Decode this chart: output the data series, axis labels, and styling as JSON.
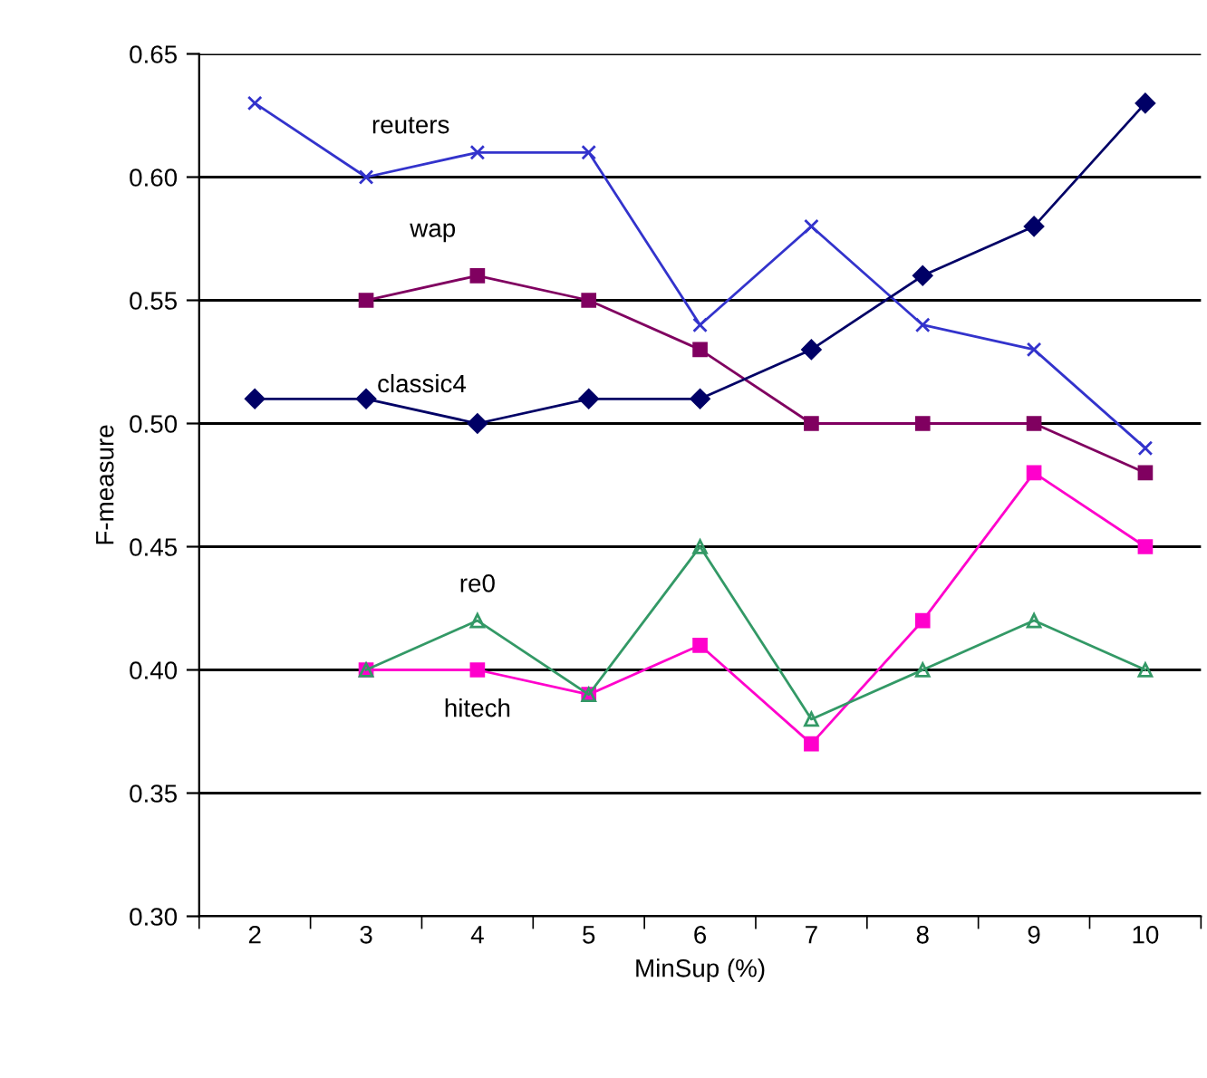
{
  "chart_data": {
    "type": "line",
    "xlabel": "MinSup (%)",
    "ylabel": "F-measure",
    "categories": [
      "2",
      "3",
      "4",
      "5",
      "6",
      "7",
      "8",
      "9",
      "10"
    ],
    "ylim": [
      0.3,
      0.65
    ],
    "yticks": [
      {
        "value": 0.3,
        "label": "0.30"
      },
      {
        "value": 0.35,
        "label": "0.35"
      },
      {
        "value": 0.4,
        "label": "0.40"
      },
      {
        "value": 0.45,
        "label": "0.45"
      },
      {
        "value": 0.5,
        "label": "0.50"
      },
      {
        "value": 0.55,
        "label": "0.55"
      },
      {
        "value": 0.6,
        "label": "0.60"
      },
      {
        "value": 0.65,
        "label": "0.65"
      }
    ],
    "grid": "y",
    "legend": false,
    "line_style": "solid",
    "series": [
      {
        "name": "reuters",
        "color": "#3333cc",
        "marker": "cross",
        "values": [
          0.63,
          0.6,
          0.61,
          0.61,
          0.54,
          0.58,
          0.54,
          0.53,
          0.49
        ]
      },
      {
        "name": "wap",
        "color": "#800060",
        "marker": "square",
        "values": [
          null,
          0.55,
          0.56,
          0.55,
          0.53,
          0.5,
          0.5,
          0.5,
          0.48
        ]
      },
      {
        "name": "classic4",
        "color": "#000066",
        "marker": "diamond",
        "values": [
          0.51,
          0.51,
          0.5,
          0.51,
          0.51,
          0.53,
          0.56,
          0.58,
          0.63
        ]
      },
      {
        "name": "re0",
        "color": "#339966",
        "marker": "triangle",
        "values": [
          null,
          0.4,
          0.42,
          0.39,
          0.45,
          0.38,
          0.4,
          0.42,
          0.4
        ]
      },
      {
        "name": "hitech",
        "color": "#ff00cc",
        "marker": "square",
        "values": [
          null,
          0.4,
          0.4,
          0.39,
          0.41,
          0.37,
          0.42,
          0.48,
          0.45
        ]
      }
    ]
  }
}
